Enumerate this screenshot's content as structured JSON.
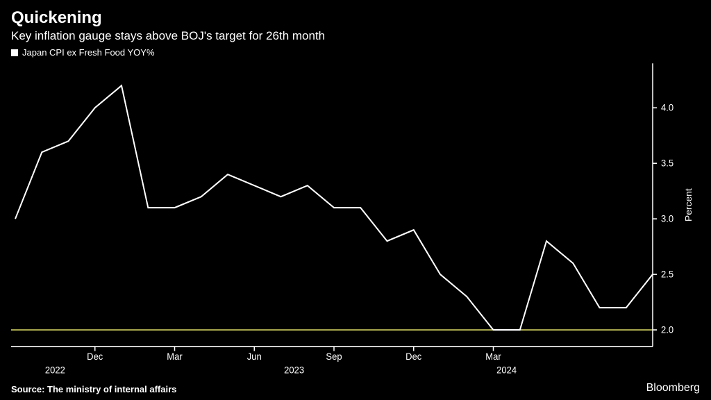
{
  "title": "Quickening",
  "subtitle": "Key inflation gauge stays above BOJ's target for 26th month",
  "legend_label": "Japan CPI ex Fresh Food YOY%",
  "source": "Source: The ministry of internal affairs",
  "brand": "Bloomberg",
  "chart": {
    "type": "line",
    "background_color": "#000000",
    "line_color": "#ffffff",
    "line_width": 2,
    "axis_color": "#ffffff",
    "reference_line_color": "#d4d462",
    "reference_line_value": 2.0,
    "text_color": "#ffffff",
    "ylabel": "Percent",
    "ylim": [
      1.85,
      4.4
    ],
    "yticks": [
      2.0,
      2.5,
      3.0,
      3.5,
      4.0
    ],
    "ytick_labels": [
      "2.0",
      "2.5",
      "3.0",
      "3.5",
      "4.0"
    ],
    "x_month_ticks": [
      "Dec",
      "Mar",
      "Jun",
      "Sep",
      "Dec",
      "Mar"
    ],
    "x_month_positions": [
      3,
      6,
      9,
      12,
      15,
      18
    ],
    "x_year_labels": [
      "2022",
      "2023",
      "2024"
    ],
    "x_year_positions": [
      1.5,
      10.5,
      18.5
    ],
    "data": [
      3.0,
      3.6,
      3.7,
      4.0,
      4.2,
      3.1,
      3.1,
      3.2,
      3.4,
      3.3,
      3.2,
      3.3,
      3.1,
      3.1,
      2.8,
      2.9,
      2.5,
      2.3,
      2.0,
      2.0,
      2.8,
      2.6,
      2.2,
      2.2,
      2.5
    ],
    "data_start_index": 0,
    "label_fontsize": 13,
    "title_fontsize": 24,
    "subtitle_fontsize": 17
  }
}
